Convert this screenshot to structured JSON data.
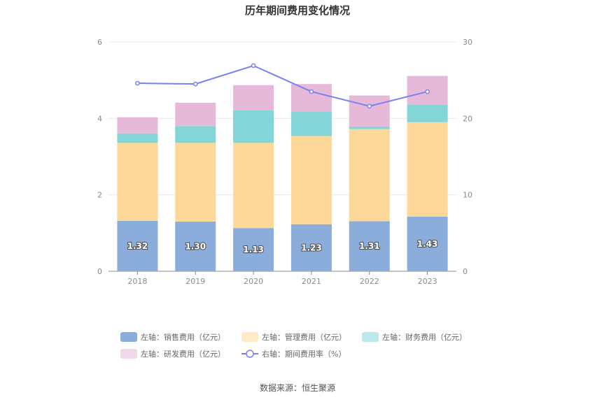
{
  "chart_data": {
    "type": "bar",
    "title": "历年期间费用变化情况",
    "categories": [
      "2018",
      "2019",
      "2020",
      "2021",
      "2022",
      "2023"
    ],
    "y_left": {
      "lim": [
        0,
        6
      ],
      "ticks": [
        "0",
        "2",
        "4",
        "6"
      ]
    },
    "y_right": {
      "lim": [
        0,
        30
      ],
      "ticks": [
        "0",
        "10",
        "20",
        "30"
      ]
    },
    "series": [
      {
        "name": "左轴：销售费用（亿元）",
        "axis": "left",
        "kind": "stacked-bar",
        "color": "#8aaddb",
        "values": [
          1.32,
          1.3,
          1.13,
          1.23,
          1.31,
          1.43
        ],
        "labels": [
          "1.32",
          "1.30",
          "1.13",
          "1.23",
          "1.31",
          "1.43"
        ]
      },
      {
        "name": "左轴：管理费用（亿元）",
        "axis": "left",
        "kind": "stacked-bar",
        "color": "#fed898",
        "values": [
          2.04,
          2.06,
          2.23,
          2.31,
          2.41,
          2.47
        ]
      },
      {
        "name": "左轴：财务费用（亿元）",
        "axis": "left",
        "kind": "stacked-bar",
        "color": "#84d5d8",
        "values": [
          0.25,
          0.44,
          0.85,
          0.63,
          0.07,
          0.46
        ]
      },
      {
        "name": "左轴：研发费用（亿元）",
        "axis": "left",
        "kind": "stacked-bar",
        "color": "#e6b9d9",
        "values": [
          0.42,
          0.61,
          0.66,
          0.73,
          0.81,
          0.75
        ]
      },
      {
        "name": "右轴：期间费用率（%）",
        "axis": "right",
        "kind": "line",
        "color": "#7b7ff0",
        "values": [
          24.6,
          24.5,
          26.9,
          23.5,
          21.6,
          23.5
        ]
      }
    ],
    "legend_position": "bottom",
    "grid": true
  },
  "source": "数据来源：恒生聚源"
}
